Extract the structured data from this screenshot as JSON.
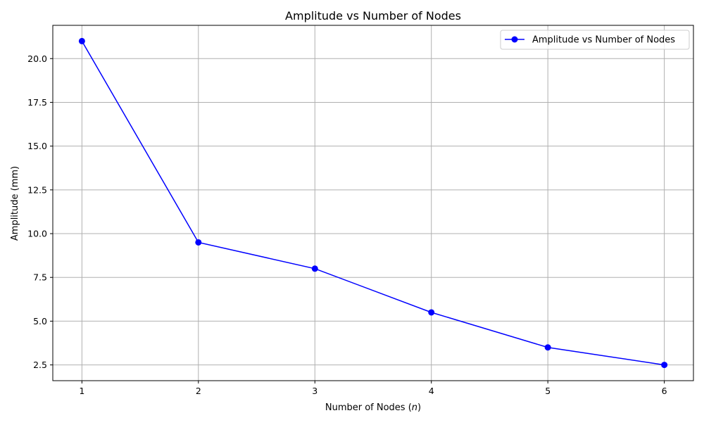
{
  "chart_data": {
    "type": "line",
    "title": "Amplitude vs Number of Nodes",
    "xlabel_prefix": "Number of Nodes (",
    "xlabel_var": "n",
    "xlabel_suffix": ")",
    "ylabel": "Amplitude (mm)",
    "x": [
      1,
      2,
      3,
      4,
      5,
      6
    ],
    "series": [
      {
        "name": "Amplitude vs Number of Nodes",
        "values": [
          21.0,
          9.5,
          8.0,
          5.5,
          3.5,
          2.5
        ],
        "color": "#0000ff",
        "marker": "circle"
      }
    ],
    "xlim": [
      0.75,
      6.25
    ],
    "ylim": [
      1.6,
      21.9
    ],
    "xticks": [
      1,
      2,
      3,
      4,
      5,
      6
    ],
    "xtick_labels": [
      "1",
      "2",
      "3",
      "4",
      "5",
      "6"
    ],
    "yticks": [
      2.5,
      5.0,
      7.5,
      10.0,
      12.5,
      15.0,
      17.5,
      20.0
    ],
    "ytick_labels": [
      "2.5",
      "5.0",
      "7.5",
      "10.0",
      "12.5",
      "15.0",
      "17.5",
      "20.0"
    ],
    "grid": true,
    "grid_color": "#b0b0b0",
    "legend_position": "top-right"
  }
}
